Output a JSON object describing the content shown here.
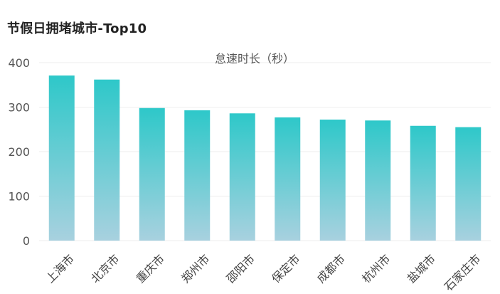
{
  "chart_data": {
    "type": "bar",
    "title": "节假日拥堵城市-Top10",
    "categories": [
      "上海市",
      "北京市",
      "重庆市",
      "郑州市",
      "邵阳市",
      "保定市",
      "成都市",
      "杭州市",
      "盐城市",
      "石家庄市"
    ],
    "series": [
      {
        "name": "怠速时长（秒）",
        "values": [
          371,
          362,
          298,
          293,
          286,
          277,
          272,
          270,
          258,
          255
        ]
      }
    ],
    "yticks": [
      "0",
      "100",
      "200",
      "300",
      "400"
    ],
    "ylim": [
      0,
      400
    ],
    "grid": true,
    "legend": "top-center",
    "colors": {
      "bar_top": "#2ec8c9",
      "bar_bottom": "#a8d1df",
      "grid": "#eeeeee"
    }
  }
}
